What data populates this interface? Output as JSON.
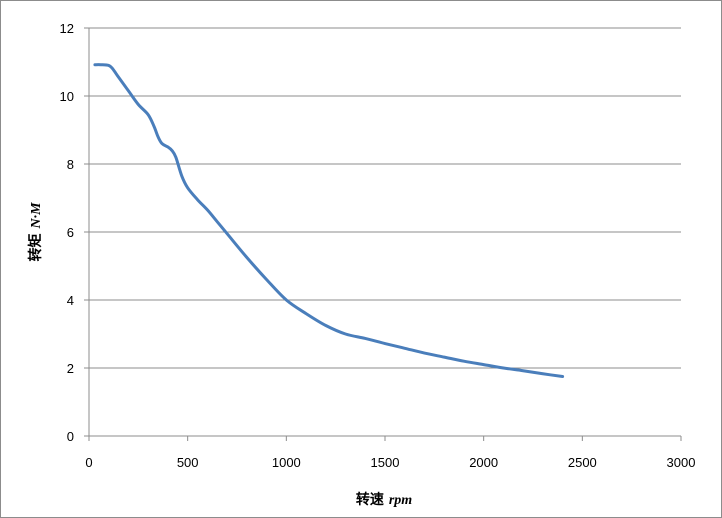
{
  "chart_data": {
    "type": "line",
    "title": "",
    "xlabel": {
      "prefix": "转速",
      "unit": "rpm"
    },
    "ylabel": {
      "prefix": "转矩",
      "unit": "N·M"
    },
    "xlim": [
      0,
      3000
    ],
    "ylim": [
      0,
      12
    ],
    "xticks": [
      0,
      500,
      1000,
      1500,
      2000,
      2500,
      3000
    ],
    "yticks": [
      0,
      2,
      4,
      6,
      8,
      10,
      12
    ],
    "grid": {
      "horizontal": true,
      "vertical": false
    },
    "legend": "none",
    "series": [
      {
        "color": "#4a7ebb",
        "points": [
          [
            30,
            10.92
          ],
          [
            60,
            10.92
          ],
          [
            100,
            10.9
          ],
          [
            120,
            10.8
          ],
          [
            150,
            10.55
          ],
          [
            200,
            10.15
          ],
          [
            250,
            9.75
          ],
          [
            300,
            9.45
          ],
          [
            330,
            9.1
          ],
          [
            350,
            8.8
          ],
          [
            370,
            8.6
          ],
          [
            400,
            8.5
          ],
          [
            420,
            8.4
          ],
          [
            440,
            8.2
          ],
          [
            470,
            7.65
          ],
          [
            500,
            7.3
          ],
          [
            550,
            6.95
          ],
          [
            600,
            6.65
          ],
          [
            650,
            6.3
          ],
          [
            700,
            5.95
          ],
          [
            800,
            5.25
          ],
          [
            900,
            4.6
          ],
          [
            1000,
            4.0
          ],
          [
            1100,
            3.6
          ],
          [
            1200,
            3.25
          ],
          [
            1300,
            3.0
          ],
          [
            1400,
            2.87
          ],
          [
            1500,
            2.72
          ],
          [
            1600,
            2.58
          ],
          [
            1700,
            2.44
          ],
          [
            1800,
            2.32
          ],
          [
            1900,
            2.2
          ],
          [
            2000,
            2.1
          ],
          [
            2100,
            2.0
          ],
          [
            2200,
            1.92
          ],
          [
            2300,
            1.83
          ],
          [
            2400,
            1.75
          ]
        ]
      }
    ]
  }
}
